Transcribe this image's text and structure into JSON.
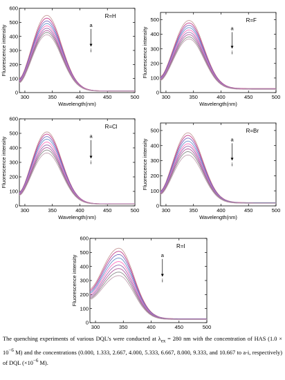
{
  "chart_data": [
    {
      "type": "line",
      "title": "",
      "xlabel": "Wavelength(nm)",
      "ylabel": "Fluorescence intensity",
      "xlim": [
        290,
        500
      ],
      "ylim": [
        0,
        600
      ],
      "xticks": [
        300,
        350,
        400,
        450,
        500
      ],
      "yticks": [
        0,
        100,
        200,
        300,
        400,
        500,
        600
      ],
      "annotation": "R=H",
      "arrow_top": "a",
      "arrow_bottom": "i",
      "series": [
        {
          "peak_x": 340,
          "peak": 550,
          "start": 100,
          "tail": 12
        },
        {
          "peak_x": 340,
          "peak": 530,
          "start": 96,
          "tail": 12
        },
        {
          "peak_x": 340,
          "peak": 510,
          "start": 92,
          "tail": 11
        },
        {
          "peak_x": 340,
          "peak": 492,
          "start": 88,
          "tail": 11
        },
        {
          "peak_x": 340,
          "peak": 475,
          "start": 84,
          "tail": 11
        },
        {
          "peak_x": 340,
          "peak": 458,
          "start": 80,
          "tail": 10
        },
        {
          "peak_x": 340,
          "peak": 442,
          "start": 76,
          "tail": 10
        },
        {
          "peak_x": 340,
          "peak": 428,
          "start": 72,
          "tail": 10
        },
        {
          "peak_x": 340,
          "peak": 412,
          "start": 68,
          "tail": 9
        }
      ]
    },
    {
      "type": "line",
      "title": "",
      "xlabel": "Wavelength(nm)",
      "ylabel": "Fluorescence intensity",
      "xlim": [
        290,
        500
      ],
      "ylim": [
        0,
        550
      ],
      "xticks": [
        300,
        350,
        400,
        450,
        500
      ],
      "yticks": [
        0,
        100,
        200,
        300,
        400,
        500
      ],
      "annotation": "R=F",
      "arrow_top": "a",
      "arrow_bottom": "i",
      "series": [
        {
          "peak_x": 342,
          "peak": 495,
          "start": 110,
          "tail": 28
        },
        {
          "peak_x": 342,
          "peak": 478,
          "start": 106,
          "tail": 27
        },
        {
          "peak_x": 342,
          "peak": 462,
          "start": 102,
          "tail": 26
        },
        {
          "peak_x": 342,
          "peak": 446,
          "start": 98,
          "tail": 25
        },
        {
          "peak_x": 342,
          "peak": 430,
          "start": 95,
          "tail": 25
        },
        {
          "peak_x": 342,
          "peak": 414,
          "start": 92,
          "tail": 24
        },
        {
          "peak_x": 342,
          "peak": 398,
          "start": 89,
          "tail": 23
        },
        {
          "peak_x": 342,
          "peak": 382,
          "start": 86,
          "tail": 23
        },
        {
          "peak_x": 342,
          "peak": 368,
          "start": 83,
          "tail": 22
        }
      ]
    },
    {
      "type": "line",
      "title": "",
      "xlabel": "Wavelength(nm)",
      "ylabel": "Fluorescence intensity",
      "xlim": [
        290,
        500
      ],
      "ylim": [
        0,
        600
      ],
      "xticks": [
        300,
        350,
        400,
        450,
        500
      ],
      "yticks": [
        0,
        100,
        200,
        300,
        400,
        500,
        600
      ],
      "annotation": "R=Cl",
      "arrow_top": "a",
      "arrow_bottom": "i",
      "series": [
        {
          "peak_x": 340,
          "peak": 510,
          "start": 95,
          "tail": 14
        },
        {
          "peak_x": 340,
          "peak": 495,
          "start": 92,
          "tail": 14
        },
        {
          "peak_x": 340,
          "peak": 478,
          "start": 89,
          "tail": 13
        },
        {
          "peak_x": 340,
          "peak": 460,
          "start": 86,
          "tail": 13
        },
        {
          "peak_x": 340,
          "peak": 440,
          "start": 83,
          "tail": 13
        },
        {
          "peak_x": 340,
          "peak": 420,
          "start": 80,
          "tail": 12
        },
        {
          "peak_x": 340,
          "peak": 402,
          "start": 77,
          "tail": 12
        },
        {
          "peak_x": 340,
          "peak": 385,
          "start": 74,
          "tail": 12
        },
        {
          "peak_x": 340,
          "peak": 365,
          "start": 72,
          "tail": 11
        }
      ]
    },
    {
      "type": "line",
      "title": "",
      "xlabel": "Wavelength(nm)",
      "ylabel": "Fluorescence intensity",
      "xlim": [
        290,
        500
      ],
      "ylim": [
        0,
        550
      ],
      "xticks": [
        300,
        350,
        400,
        450,
        500
      ],
      "yticks": [
        0,
        100,
        200,
        300,
        400,
        500
      ],
      "annotation": "R=Br",
      "arrow_top": "a",
      "arrow_bottom": "i",
      "series": [
        {
          "peak_x": 340,
          "peak": 485,
          "start": 100,
          "tail": 22
        },
        {
          "peak_x": 340,
          "peak": 468,
          "start": 97,
          "tail": 21
        },
        {
          "peak_x": 340,
          "peak": 450,
          "start": 94,
          "tail": 20
        },
        {
          "peak_x": 340,
          "peak": 430,
          "start": 91,
          "tail": 20
        },
        {
          "peak_x": 340,
          "peak": 412,
          "start": 88,
          "tail": 19
        },
        {
          "peak_x": 340,
          "peak": 396,
          "start": 85,
          "tail": 19
        },
        {
          "peak_x": 340,
          "peak": 378,
          "start": 82,
          "tail": 18
        },
        {
          "peak_x": 340,
          "peak": 360,
          "start": 79,
          "tail": 18
        },
        {
          "peak_x": 340,
          "peak": 338,
          "start": 76,
          "tail": 17
        }
      ]
    },
    {
      "type": "line",
      "title": "",
      "xlabel": "Wavelength(nm)",
      "ylabel": "Fluorescence intensity",
      "xlim": [
        290,
        500
      ],
      "ylim": [
        0,
        600
      ],
      "xticks": [
        300,
        350,
        400,
        450,
        500
      ],
      "yticks": [
        0,
        100,
        200,
        300,
        400,
        500,
        600
      ],
      "annotation": "R=I",
      "arrow_top": "a",
      "arrow_bottom": "i",
      "series": [
        {
          "peak_x": 342,
          "peak": 530,
          "start": 240,
          "tail": 28
        },
        {
          "peak_x": 342,
          "peak": 508,
          "start": 230,
          "tail": 27
        },
        {
          "peak_x": 342,
          "peak": 485,
          "start": 220,
          "tail": 26
        },
        {
          "peak_x": 342,
          "peak": 460,
          "start": 210,
          "tail": 26
        },
        {
          "peak_x": 342,
          "peak": 435,
          "start": 200,
          "tail": 25
        },
        {
          "peak_x": 342,
          "peak": 410,
          "start": 190,
          "tail": 25
        },
        {
          "peak_x": 342,
          "peak": 385,
          "start": 180,
          "tail": 24
        },
        {
          "peak_x": 342,
          "peak": 360,
          "start": 172,
          "tail": 23
        },
        {
          "peak_x": 342,
          "peak": 335,
          "start": 165,
          "tail": 22
        }
      ]
    }
  ],
  "series_colors": [
    "#c69a9a",
    "#c23b8a",
    "#7a6cc0",
    "#6a90cc",
    "#ff70c0",
    "#9b6cb0",
    "#b05aa0",
    "#8a8a8a",
    "#c0a0b0"
  ],
  "caption": {
    "part1": "The quenching experiments of various DQL’s were conducted at λ",
    "sub_ex": "ex",
    "part2": " = 280 nm with the concentration of HAS (1.0 × 10",
    "sup1": "−6",
    "part3": " M) and the concentrations (0.000, 1.333, 2.667, 4.000, 5.333, 6.667, 8.000, 9.333, and 10.667 to a-i, respectively) of DQL (×10",
    "sup2": "−6",
    "part4": " M)."
  }
}
